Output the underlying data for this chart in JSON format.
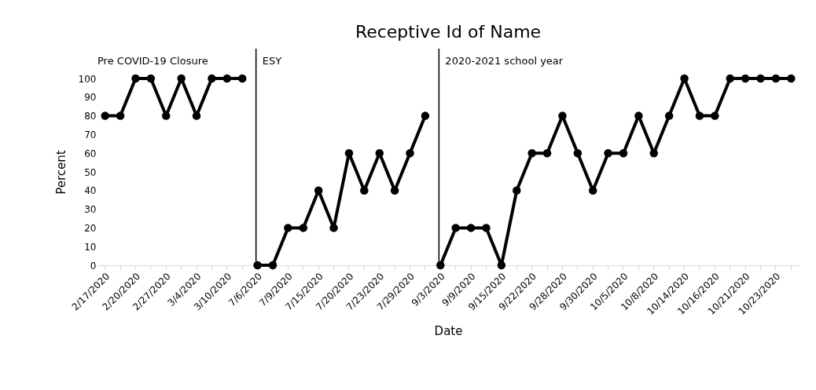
{
  "chart_data": {
    "type": "line",
    "title": "Receptive Id of Name",
    "xlabel": "Date",
    "ylabel": "Percent",
    "categories": [
      "2/17/2020",
      null,
      "2/20/2020",
      null,
      "2/27/2020",
      null,
      "3/4/2020",
      null,
      "3/10/2020",
      null,
      "7/6/2020",
      null,
      "7/9/2020",
      null,
      "7/15/2020",
      null,
      "7/20/2020",
      null,
      "7/23/2020",
      null,
      "7/29/2020",
      null,
      "9/3/2020",
      null,
      "9/9/2020",
      null,
      "9/15/2020",
      null,
      "9/22/2020",
      null,
      "9/28/2020",
      null,
      "9/30/2020",
      null,
      "10/5/2020",
      null,
      "10/8/2020",
      null,
      "10/14/2020",
      null,
      "10/16/2020",
      null,
      "10/21/2020",
      null,
      "10/23/2020",
      null
    ],
    "series": [
      {
        "color": "#000000",
        "values": [
          80,
          80,
          100,
          100,
          80,
          100,
          80,
          100,
          100,
          100,
          null,
          null,
          null,
          null,
          null,
          null,
          null,
          null,
          null,
          null,
          null,
          null,
          null,
          null,
          null,
          null,
          null,
          null,
          null,
          null,
          null,
          null,
          null,
          null,
          null,
          null,
          null,
          null,
          null,
          null,
          null,
          null,
          null,
          null,
          null,
          null
        ]
      },
      {
        "color": "#000000",
        "values": [
          null,
          null,
          null,
          null,
          null,
          null,
          null,
          null,
          null,
          null,
          0,
          0,
          20,
          20,
          40,
          20,
          60,
          40,
          60,
          40,
          60,
          80,
          null,
          null,
          null,
          null,
          null,
          null,
          null,
          null,
          null,
          null,
          null,
          null,
          null,
          null,
          null,
          null,
          null,
          null,
          null,
          null,
          null,
          null,
          null,
          null
        ]
      },
      {
        "color": "#000000",
        "values": [
          null,
          null,
          null,
          null,
          null,
          null,
          null,
          null,
          null,
          null,
          null,
          null,
          null,
          null,
          null,
          null,
          null,
          null,
          null,
          null,
          null,
          null,
          0,
          20,
          20,
          20,
          0,
          40,
          60,
          60,
          80,
          60,
          40,
          60,
          60,
          80,
          60,
          80,
          100,
          80,
          80,
          100,
          100,
          100,
          100,
          100
        ]
      }
    ],
    "ylim": [
      0,
      100
    ],
    "yticks": [
      0,
      10,
      20,
      30,
      40,
      50,
      60,
      70,
      80,
      90,
      100
    ],
    "grid": false,
    "legend": false,
    "marker": "circle",
    "line_style": "solid",
    "ref_lines": [
      {
        "axis": "x",
        "value": "7/6/2020",
        "label": "ESY",
        "color": "#000000"
      },
      {
        "axis": "x",
        "value": "9/3/2020",
        "label": "2020-2021 school year",
        "color": "#000000"
      }
    ],
    "annotations": [
      "Pre COVID-19 Closure"
    ]
  }
}
